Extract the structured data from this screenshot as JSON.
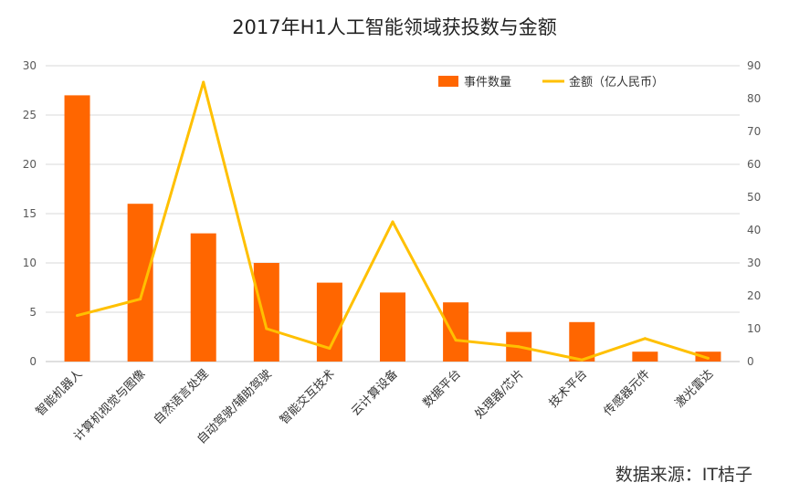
{
  "chart_data": {
    "type": "bar",
    "title": "2017年H1人工智能领域获投数与金额",
    "categories": [
      "智能机器人",
      "计算机视觉与图像",
      "自然语言处理",
      "自动驾驶/辅助驾驶",
      "智能交互技术",
      "云计算设备",
      "数据平台",
      "处理器/芯片",
      "技术平台",
      "传感器元件",
      "激光雷达"
    ],
    "series": [
      {
        "name": "事件数量",
        "type": "bar",
        "axis": "left",
        "color": "#FF6600",
        "values": [
          27,
          16,
          13,
          10,
          8,
          7,
          6,
          3,
          4,
          1,
          1
        ]
      },
      {
        "name": "金额（亿人民币）",
        "type": "line",
        "axis": "right",
        "color": "#FFC000",
        "values": [
          14,
          19,
          85,
          10,
          4,
          42.5,
          6.5,
          4.5,
          0.5,
          7,
          1
        ]
      }
    ],
    "y_left": {
      "min": 0,
      "max": 30,
      "ticks": [
        0,
        5,
        10,
        15,
        20,
        25,
        30
      ]
    },
    "y_right": {
      "min": 0,
      "max": 90,
      "ticks": [
        0,
        10,
        20,
        30,
        40,
        50,
        60,
        70,
        80,
        90
      ]
    },
    "grid": true,
    "legend_position": "top-right"
  },
  "source_note": "数据来源：IT桔子"
}
